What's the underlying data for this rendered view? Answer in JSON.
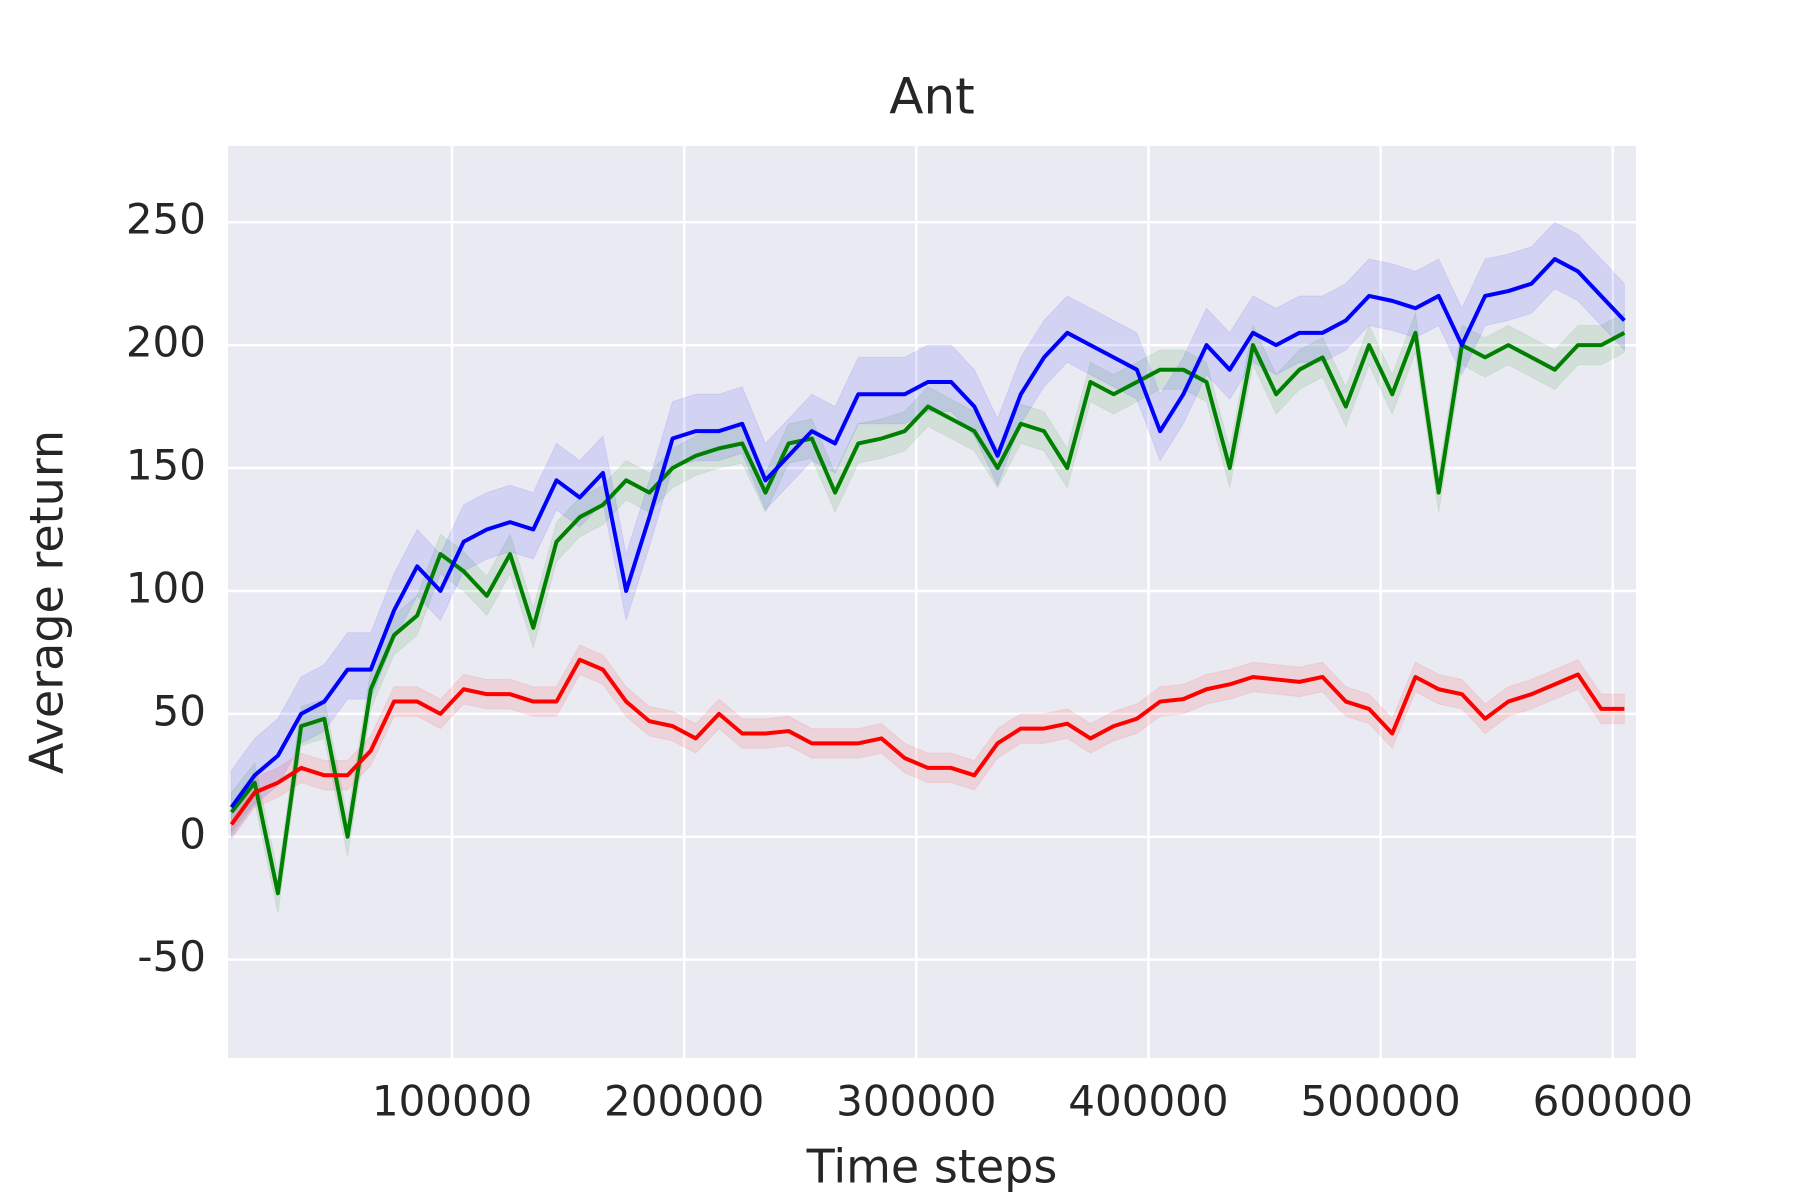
{
  "chart_data": {
    "type": "line",
    "title": "Ant",
    "xlabel": "Time steps",
    "ylabel": "Average return",
    "x": [
      5000,
      15000,
      25000,
      35000,
      45000,
      55000,
      65000,
      75000,
      85000,
      95000,
      105000,
      115000,
      125000,
      135000,
      145000,
      155000,
      165000,
      175000,
      185000,
      195000,
      205000,
      215000,
      225000,
      235000,
      245000,
      255000,
      265000,
      275000,
      285000,
      295000,
      305000,
      315000,
      325000,
      335000,
      345000,
      355000,
      365000,
      375000,
      385000,
      395000,
      405000,
      415000,
      425000,
      435000,
      445000,
      455000,
      465000,
      475000,
      485000,
      495000,
      505000,
      515000,
      525000,
      535000,
      545000,
      555000,
      565000,
      575000,
      585000,
      595000,
      605000
    ],
    "series": [
      {
        "color": "#008000",
        "values": [
          10,
          22,
          -23,
          45,
          48,
          0,
          60,
          82,
          90,
          115,
          108,
          98,
          115,
          85,
          120,
          130,
          135,
          145,
          140,
          150,
          155,
          158,
          160,
          140,
          160,
          162,
          140,
          160,
          162,
          165,
          175,
          170,
          165,
          150,
          168,
          165,
          150,
          185,
          180,
          185,
          190,
          190,
          185,
          150,
          200,
          180,
          190,
          195,
          175,
          200,
          180,
          205,
          140,
          200,
          195,
          200,
          195,
          190,
          200,
          200,
          205
        ],
        "lower": [
          2,
          14,
          -31,
          37,
          40,
          -8,
          52,
          74,
          82,
          107,
          100,
          90,
          107,
          77,
          112,
          122,
          127,
          137,
          132,
          142,
          147,
          150,
          152,
          132,
          152,
          154,
          132,
          152,
          154,
          157,
          167,
          162,
          157,
          142,
          160,
          157,
          142,
          177,
          172,
          177,
          182,
          182,
          177,
          142,
          192,
          172,
          182,
          187,
          167,
          192,
          172,
          197,
          132,
          192,
          187,
          192,
          187,
          182,
          192,
          192,
          197
        ],
        "upper": [
          18,
          30,
          -15,
          53,
          56,
          8,
          68,
          90,
          98,
          123,
          116,
          106,
          123,
          93,
          128,
          138,
          143,
          153,
          148,
          158,
          163,
          166,
          168,
          148,
          168,
          170,
          148,
          168,
          170,
          173,
          183,
          178,
          173,
          158,
          176,
          173,
          158,
          193,
          188,
          193,
          198,
          198,
          193,
          158,
          208,
          188,
          198,
          203,
          183,
          208,
          188,
          213,
          148,
          208,
          203,
          208,
          203,
          198,
          208,
          208,
          213
        ]
      },
      {
        "color": "#0000ff",
        "values": [
          12,
          25,
          33,
          50,
          55,
          68,
          68,
          92,
          110,
          100,
          120,
          125,
          128,
          125,
          145,
          138,
          148,
          100,
          130,
          162,
          165,
          165,
          168,
          145,
          155,
          165,
          160,
          180,
          180,
          180,
          185,
          185,
          175,
          155,
          180,
          195,
          205,
          200,
          195,
          190,
          165,
          180,
          200,
          190,
          205,
          200,
          205,
          205,
          210,
          220,
          218,
          215,
          220,
          200,
          220,
          222,
          225,
          235,
          230,
          220,
          210
        ],
        "lower": [
          0,
          13,
          21,
          38,
          43,
          56,
          56,
          80,
          98,
          88,
          108,
          113,
          116,
          113,
          133,
          126,
          136,
          88,
          118,
          150,
          153,
          153,
          156,
          133,
          143,
          153,
          148,
          168,
          168,
          168,
          173,
          173,
          163,
          143,
          168,
          183,
          193,
          188,
          183,
          178,
          153,
          168,
          188,
          178,
          193,
          188,
          193,
          193,
          198,
          208,
          206,
          203,
          208,
          188,
          208,
          210,
          213,
          223,
          218,
          208,
          198
        ],
        "upper": [
          27,
          40,
          48,
          65,
          70,
          83,
          83,
          107,
          125,
          115,
          135,
          140,
          143,
          140,
          160,
          153,
          163,
          115,
          145,
          177,
          180,
          180,
          183,
          160,
          170,
          180,
          175,
          195,
          195,
          195,
          200,
          200,
          190,
          170,
          195,
          210,
          220,
          215,
          210,
          205,
          180,
          195,
          215,
          205,
          220,
          215,
          220,
          220,
          225,
          235,
          233,
          230,
          235,
          215,
          235,
          237,
          240,
          250,
          245,
          235,
          225
        ]
      },
      {
        "color": "#ff0000",
        "values": [
          5,
          18,
          22,
          28,
          25,
          25,
          35,
          55,
          55,
          50,
          60,
          58,
          58,
          55,
          55,
          72,
          68,
          55,
          47,
          45,
          40,
          50,
          42,
          42,
          43,
          38,
          38,
          38,
          40,
          32,
          28,
          28,
          25,
          38,
          44,
          44,
          46,
          40,
          45,
          48,
          55,
          56,
          60,
          62,
          65,
          64,
          63,
          65,
          55,
          52,
          42,
          65,
          60,
          58,
          48,
          55,
          58,
          62,
          66,
          52,
          52
        ],
        "lower": [
          -1,
          12,
          16,
          22,
          19,
          19,
          29,
          49,
          49,
          44,
          54,
          52,
          52,
          49,
          49,
          66,
          62,
          49,
          41,
          39,
          34,
          44,
          36,
          36,
          37,
          32,
          32,
          32,
          34,
          26,
          22,
          22,
          19,
          32,
          38,
          38,
          40,
          34,
          39,
          42,
          49,
          50,
          54,
          56,
          59,
          58,
          57,
          59,
          49,
          46,
          36,
          59,
          54,
          52,
          42,
          49,
          52,
          56,
          60,
          46,
          46
        ],
        "upper": [
          11,
          24,
          28,
          34,
          31,
          31,
          41,
          61,
          61,
          56,
          66,
          64,
          64,
          61,
          61,
          78,
          74,
          61,
          53,
          51,
          46,
          56,
          48,
          48,
          49,
          44,
          44,
          44,
          46,
          38,
          34,
          34,
          31,
          44,
          50,
          50,
          52,
          46,
          51,
          54,
          61,
          62,
          66,
          68,
          71,
          70,
          69,
          71,
          61,
          58,
          48,
          71,
          66,
          64,
          54,
          61,
          64,
          68,
          72,
          58,
          58
        ]
      }
    ],
    "xlim": [
      3500,
      610000
    ],
    "xticks": [
      100000,
      200000,
      300000,
      400000,
      500000,
      600000
    ],
    "ylim": [
      -90,
      281
    ],
    "yticks": [
      -50,
      0,
      50,
      100,
      150,
      200,
      250
    ],
    "grid": true,
    "background": "#eaeaf2"
  }
}
